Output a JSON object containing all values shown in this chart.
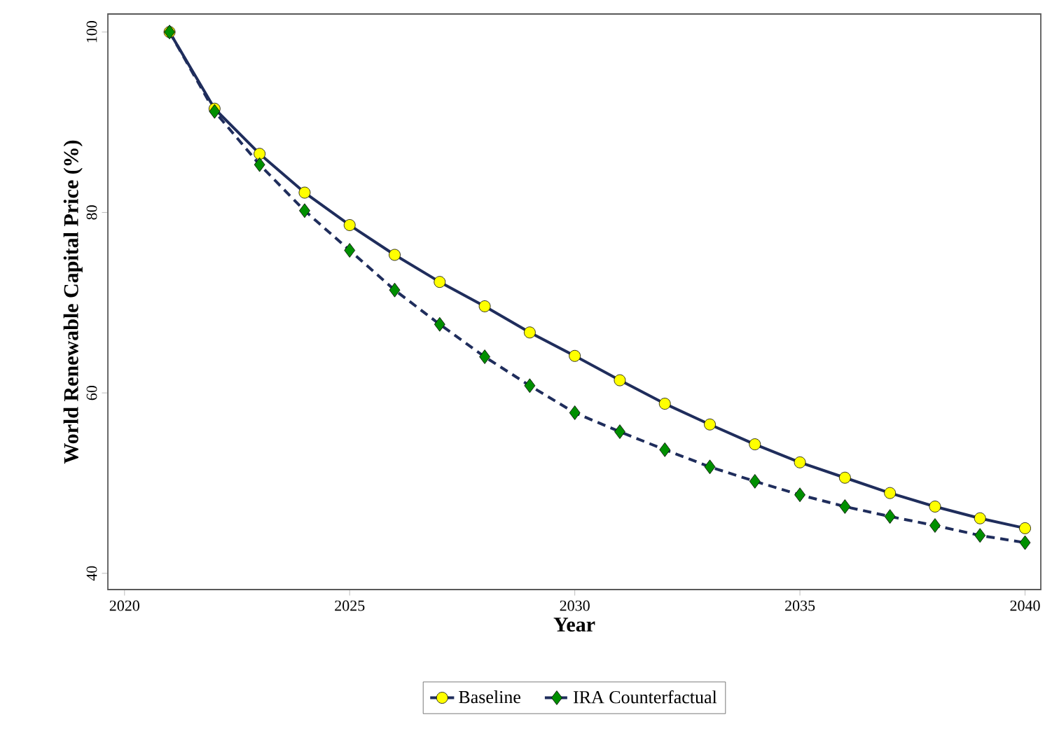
{
  "chart_data": {
    "type": "line",
    "xlabel": "Year",
    "ylabel": "World Renewable Capital Price (%)",
    "x": [
      2021,
      2022,
      2023,
      2024,
      2025,
      2026,
      2027,
      2028,
      2029,
      2030,
      2031,
      2032,
      2033,
      2034,
      2035,
      2036,
      2037,
      2038,
      2039,
      2040
    ],
    "series": [
      {
        "name": "Baseline",
        "color": "#ffff00",
        "marker": "circle",
        "line_style": "solid",
        "values": [
          100,
          91.5,
          86.5,
          82.2,
          78.6,
          75.3,
          72.3,
          69.6,
          66.7,
          64.1,
          61.4,
          58.8,
          56.5,
          54.3,
          52.3,
          50.6,
          48.9,
          47.4,
          46.1,
          45.0
        ]
      },
      {
        "name": "IRA Counterfactual",
        "color": "#008f00",
        "marker": "diamond",
        "line_style": "dashed",
        "values": [
          100,
          91.2,
          85.3,
          80.2,
          75.8,
          71.4,
          67.6,
          64.0,
          60.8,
          57.8,
          55.7,
          53.7,
          51.8,
          50.2,
          48.7,
          47.4,
          46.3,
          45.3,
          44.2,
          43.4
        ]
      }
    ],
    "xlim": [
      2019.63,
      2040.35
    ],
    "ylim": [
      38.2,
      102
    ],
    "xticks": [
      2020,
      2025,
      2030,
      2035,
      2040
    ],
    "yticks": [
      40,
      60,
      80,
      100
    ],
    "grid": false,
    "legend": "bottom"
  }
}
